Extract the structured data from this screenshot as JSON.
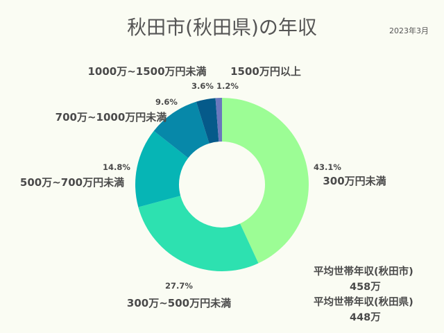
{
  "title": "秋田市(秋田県)の年収",
  "date": "2023年3月",
  "chart_data": {
    "type": "pie",
    "title": "秋田市(秋田県)の年収",
    "start_angle_deg": 0,
    "direction": "clockwise",
    "slices": [
      {
        "label": "300万円未満",
        "value": 43.1,
        "pct_label": "43.1%",
        "color": "#9cfd95"
      },
      {
        "label": "300万~500万円未満",
        "value": 27.7,
        "pct_label": "27.7%",
        "color": "#2de1b0"
      },
      {
        "label": "500万~700万円未満",
        "value": 14.8,
        "pct_label": "14.8%",
        "color": "#06b5b5"
      },
      {
        "label": "700万~1000万円未満",
        "value": 9.6,
        "pct_label": "9.6%",
        "color": "#0788a9"
      },
      {
        "label": "1000万~1500万円未満",
        "value": 3.6,
        "pct_label": "3.6%",
        "color": "#055a8a"
      },
      {
        "label": "1500万円以上",
        "value": 1.2,
        "pct_label": "1.2%",
        "color": "#6a77bd"
      }
    ]
  },
  "averages": {
    "city_label": "平均世帯年収(秋田市)",
    "city_value": "458万",
    "pref_label": "平均世帯年収(秋田県)",
    "pref_value": "448万"
  }
}
